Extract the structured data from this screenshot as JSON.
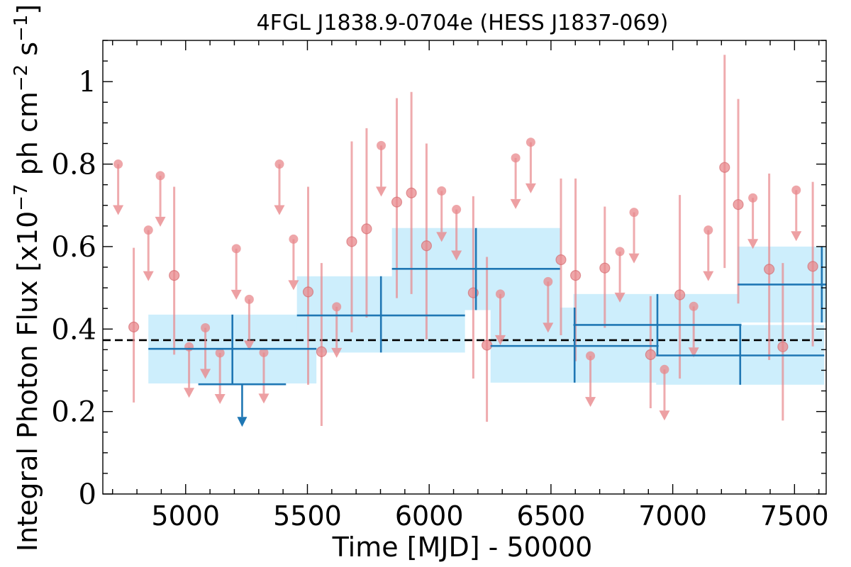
{
  "chart_data": {
    "type": "scatter",
    "title": "4FGL J1838.9-0704e (HESS J1837-069)",
    "xlabel": "Time [MJD] - 50000",
    "ylabel": "Integral Photon Flux [x10^-7 ph cm^-2 s^-1]",
    "ylabel_parts": {
      "pre": "Integral Photon Flux [x10",
      "exp1": "−7",
      "mid": " ph cm",
      "exp2": "−2",
      "mid2": " s",
      "exp3": "−1",
      "post": "]"
    },
    "xlim": [
      4660,
      7630
    ],
    "ylim": [
      0,
      1.1
    ],
    "xticks": [
      5000,
      5500,
      6000,
      6500,
      7000,
      7500
    ],
    "yticks": [
      0,
      0.2,
      0.4,
      0.6,
      0.8,
      1
    ],
    "ytick_labels": [
      "0",
      "0.2",
      "0.4",
      "0.6",
      "0.8",
      "1"
    ],
    "mean_flux": 0.373,
    "colors": {
      "short_bins": "#e8888c",
      "long_bins": "#1f77b4",
      "band": "#cdeefc",
      "mean_line": "#000000"
    },
    "long_bins_detections": [
      {
        "x": 5192,
        "y": 0.352,
        "x0": 4847,
        "x1": 5537,
        "ylo": 0.268,
        "yhi": 0.435
      },
      {
        "x": 5802,
        "y": 0.433,
        "x0": 5457,
        "x1": 6147,
        "ylo": 0.343,
        "yhi": 0.528
      },
      {
        "x": 6192,
        "y": 0.546,
        "x0": 5847,
        "x1": 6537,
        "ylo": 0.446,
        "yhi": 0.645
      },
      {
        "x": 6597,
        "y": 0.359,
        "x0": 6252,
        "x1": 6942,
        "ylo": 0.27,
        "yhi": 0.452
      },
      {
        "x": 6937,
        "y": 0.41,
        "x0": 6592,
        "x1": 7282,
        "ylo": 0.337,
        "yhi": 0.485
      },
      {
        "x": 7277,
        "y": 0.336,
        "x0": 6932,
        "x1": 7622,
        "ylo": 0.265,
        "yhi": 0.41
      },
      {
        "x": 7612,
        "y": 0.508,
        "x0": 7267,
        "x1": 7957,
        "ylo": 0.416,
        "yhi": 0.6
      }
    ],
    "long_bins_upper_limits": [
      {
        "x": 5232,
        "y": 0.266,
        "x0": 5052,
        "x1": 5412
      }
    ],
    "short_bins_detections": [
      {
        "x": 4787,
        "y": 0.405,
        "ylo": 0.222,
        "yhi": 0.597
      },
      {
        "x": 4953,
        "y": 0.53,
        "ylo": 0.338,
        "yhi": 0.745
      },
      {
        "x": 5503,
        "y": 0.49,
        "ylo": 0.265,
        "yhi": 0.745
      },
      {
        "x": 5558,
        "y": 0.345,
        "ylo": 0.165,
        "yhi": 0.56
      },
      {
        "x": 5682,
        "y": 0.612,
        "ylo": 0.392,
        "yhi": 0.855
      },
      {
        "x": 5743,
        "y": 0.643,
        "ylo": 0.428,
        "yhi": 0.887
      },
      {
        "x": 5867,
        "y": 0.708,
        "ylo": 0.475,
        "yhi": 0.96
      },
      {
        "x": 5927,
        "y": 0.73,
        "ylo": 0.485,
        "yhi": 0.975
      },
      {
        "x": 5989,
        "y": 0.602,
        "ylo": 0.375,
        "yhi": 0.85
      },
      {
        "x": 6181,
        "y": 0.488,
        "ylo": 0.28,
        "yhi": 0.722
      },
      {
        "x": 6237,
        "y": 0.361,
        "ylo": 0.175,
        "yhi": 0.575
      },
      {
        "x": 6541,
        "y": 0.568,
        "ylo": 0.385,
        "yhi": 0.765
      },
      {
        "x": 6601,
        "y": 0.53,
        "ylo": 0.322,
        "yhi": 0.765
      },
      {
        "x": 6721,
        "y": 0.548,
        "ylo": 0.403,
        "yhi": 0.697
      },
      {
        "x": 6909,
        "y": 0.338,
        "ylo": 0.208,
        "yhi": 0.48
      },
      {
        "x": 7029,
        "y": 0.483,
        "ylo": 0.28,
        "yhi": 0.725
      },
      {
        "x": 7213,
        "y": 0.792,
        "ylo": 0.548,
        "yhi": 1.065
      },
      {
        "x": 7269,
        "y": 0.702,
        "ylo": 0.462,
        "yhi": 0.958
      },
      {
        "x": 7396,
        "y": 0.545,
        "ylo": 0.325,
        "yhi": 0.777
      },
      {
        "x": 7452,
        "y": 0.357,
        "ylo": 0.178,
        "yhi": 0.56
      },
      {
        "x": 7575,
        "y": 0.552,
        "ylo": 0.358,
        "yhi": 0.757
      }
    ],
    "short_bins_upper_limits": [
      {
        "x": 4723,
        "y": 0.8
      },
      {
        "x": 4847,
        "y": 0.64
      },
      {
        "x": 4896,
        "y": 0.772
      },
      {
        "x": 5014,
        "y": 0.357
      },
      {
        "x": 5081,
        "y": 0.403
      },
      {
        "x": 5141,
        "y": 0.342
      },
      {
        "x": 5208,
        "y": 0.595
      },
      {
        "x": 5261,
        "y": 0.472
      },
      {
        "x": 5321,
        "y": 0.343
      },
      {
        "x": 5385,
        "y": 0.8
      },
      {
        "x": 5443,
        "y": 0.618
      },
      {
        "x": 5620,
        "y": 0.454
      },
      {
        "x": 5803,
        "y": 0.845
      },
      {
        "x": 6051,
        "y": 0.735
      },
      {
        "x": 6112,
        "y": 0.69
      },
      {
        "x": 6292,
        "y": 0.485
      },
      {
        "x": 6355,
        "y": 0.815
      },
      {
        "x": 6417,
        "y": 0.853
      },
      {
        "x": 6488,
        "y": 0.515
      },
      {
        "x": 6662,
        "y": 0.335
      },
      {
        "x": 6783,
        "y": 0.588
      },
      {
        "x": 6841,
        "y": 0.683
      },
      {
        "x": 6966,
        "y": 0.302
      },
      {
        "x": 7086,
        "y": 0.455
      },
      {
        "x": 7146,
        "y": 0.64
      },
      {
        "x": 7329,
        "y": 0.718
      },
      {
        "x": 7507,
        "y": 0.737
      }
    ]
  }
}
